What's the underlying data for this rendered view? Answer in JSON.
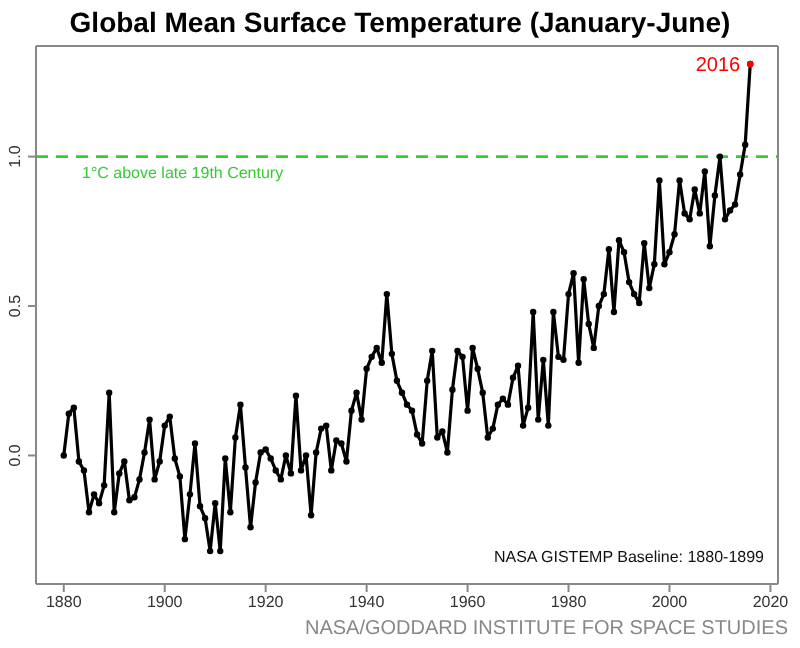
{
  "chart_data": {
    "type": "line",
    "title": "Global Mean Surface Temperature (January-June)",
    "xlim": [
      1874.5,
      2021.5
    ],
    "xticks": [
      1880,
      1900,
      1920,
      1940,
      1960,
      1980,
      2000,
      2020
    ],
    "ylim": [
      -0.43,
      1.37
    ],
    "yticks": [
      {
        "value": 0,
        "label": "0.0"
      },
      {
        "value": 0.5,
        "label": "0.5"
      },
      {
        "value": 1,
        "label": "1.0"
      }
    ],
    "marker": "circle",
    "line_style": "solid",
    "ref_lines": [
      {
        "axis": "y",
        "value": 1,
        "label": "1°C above late 19th Century",
        "color": "#33cc33",
        "line_style": "dashed"
      }
    ],
    "annotations": [
      {
        "text": "2016",
        "x": 2016,
        "y": 1.31
      },
      "NASA GISTEMP Baseline: 1880-1899",
      "NASA/GODDARD INSTITUTE FOR SPACE STUDIES"
    ],
    "series": [
      {
        "color": "#000000",
        "x": [
          1880,
          1881,
          1882,
          1883,
          1884,
          1885,
          1886,
          1887,
          1888,
          1889,
          1890,
          1891,
          1892,
          1893,
          1894,
          1895,
          1896,
          1897,
          1898,
          1899,
          1900,
          1901,
          1902,
          1903,
          1904,
          1905,
          1906,
          1907,
          1908,
          1909,
          1910,
          1911,
          1912,
          1913,
          1914,
          1915,
          1916,
          1917,
          1918,
          1919,
          1920,
          1921,
          1922,
          1923,
          1924,
          1925,
          1926,
          1927,
          1928,
          1929,
          1930,
          1931,
          1932,
          1933,
          1934,
          1935,
          1936,
          1937,
          1938,
          1939,
          1940,
          1941,
          1942,
          1943,
          1944,
          1945,
          1946,
          1947,
          1948,
          1949,
          1950,
          1951,
          1952,
          1953,
          1954,
          1955,
          1956,
          1957,
          1958,
          1959,
          1960,
          1961,
          1962,
          1963,
          1964,
          1965,
          1966,
          1967,
          1968,
          1969,
          1970,
          1971,
          1972,
          1973,
          1974,
          1975,
          1976,
          1977,
          1978,
          1979,
          1980,
          1981,
          1982,
          1983,
          1984,
          1985,
          1986,
          1987,
          1988,
          1989,
          1990,
          1991,
          1992,
          1993,
          1994,
          1995,
          1996,
          1997,
          1998,
          1999,
          2000,
          2001,
          2002,
          2003,
          2004,
          2005,
          2006,
          2007,
          2008,
          2009,
          2010,
          2011,
          2012,
          2013,
          2014,
          2015,
          2016
        ],
        "values": [
          0.0,
          0.14,
          0.16,
          -0.02,
          -0.05,
          -0.19,
          -0.13,
          -0.16,
          -0.1,
          0.21,
          -0.19,
          -0.06,
          -0.02,
          -0.15,
          -0.14,
          -0.08,
          0.01,
          0.12,
          -0.08,
          -0.02,
          0.1,
          0.13,
          -0.01,
          -0.07,
          -0.28,
          -0.13,
          0.04,
          -0.17,
          -0.21,
          -0.32,
          -0.16,
          -0.32,
          -0.01,
          -0.19,
          0.06,
          0.17,
          -0.04,
          -0.24,
          -0.09,
          0.01,
          0.02,
          -0.01,
          -0.05,
          -0.08,
          0.0,
          -0.06,
          0.2,
          -0.05,
          0.0,
          -0.2,
          0.01,
          0.09,
          0.1,
          -0.05,
          0.05,
          0.04,
          -0.02,
          0.15,
          0.21,
          0.12,
          0.29,
          0.33,
          0.36,
          0.31,
          0.54,
          0.34,
          0.25,
          0.21,
          0.17,
          0.15,
          0.07,
          0.04,
          0.25,
          0.35,
          0.06,
          0.08,
          0.01,
          0.22,
          0.35,
          0.33,
          0.15,
          0.36,
          0.29,
          0.21,
          0.06,
          0.09,
          0.17,
          0.19,
          0.17,
          0.26,
          0.3,
          0.1,
          0.16,
          0.48,
          0.12,
          0.32,
          0.1,
          0.48,
          0.33,
          0.32,
          0.54,
          0.61,
          0.31,
          0.59,
          0.44,
          0.36,
          0.5,
          0.54,
          0.69,
          0.48,
          0.72,
          0.68,
          0.58,
          0.54,
          0.51,
          0.71,
          0.56,
          0.64,
          0.92,
          0.64,
          0.68,
          0.74,
          0.92,
          0.81,
          0.79,
          0.89,
          0.81,
          0.95,
          0.7,
          0.87,
          1.0,
          0.79,
          0.82,
          0.84,
          0.94,
          1.04,
          1.31
        ]
      },
      {
        "type": "scatter",
        "color": "#ff0000",
        "x": [
          2016
        ],
        "values": [
          1.31
        ]
      }
    ]
  }
}
